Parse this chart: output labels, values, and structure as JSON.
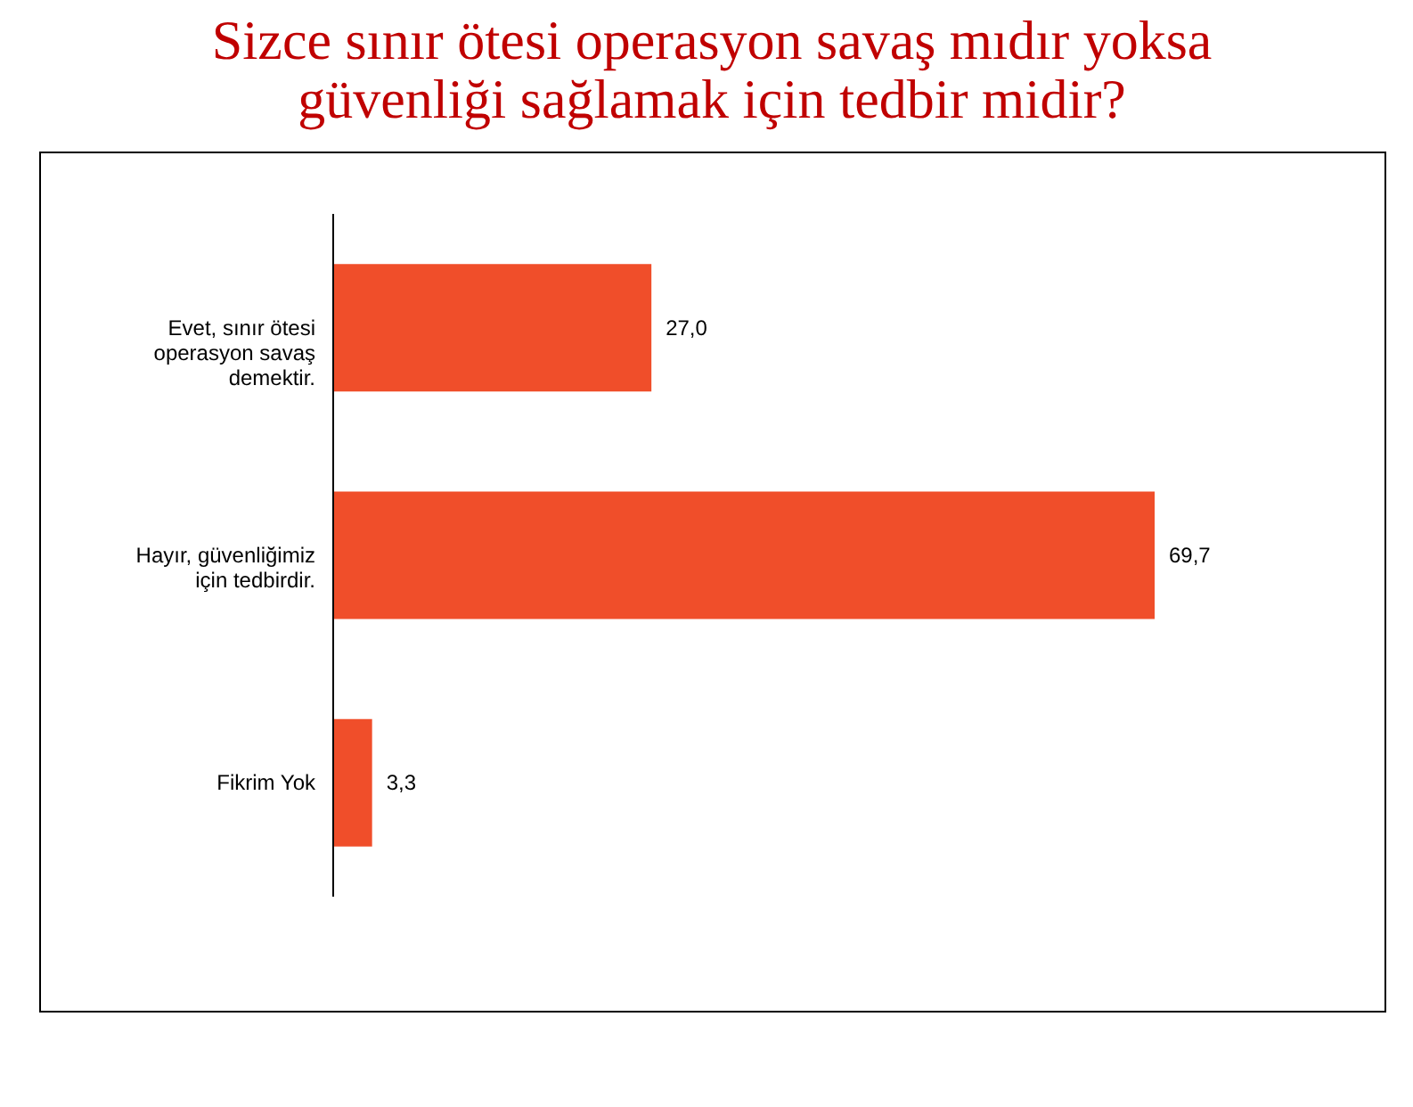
{
  "chart_data": {
    "type": "bar",
    "orientation": "horizontal",
    "title": "Sizce sınır ötesi operasyon savaş mıdır yoksa güvenliği sağlamak için tedbir midir?",
    "categories": [
      "Evet, sınır ötesi operasyon savaş demektir.",
      "Hayır, güvenliğimiz için tedbirdir.",
      "Fikrim Yok"
    ],
    "values": [
      27.0,
      69.7,
      3.3
    ],
    "value_labels": [
      "27,0",
      "69,7",
      "3,3"
    ],
    "color": "#f04e2a"
  }
}
